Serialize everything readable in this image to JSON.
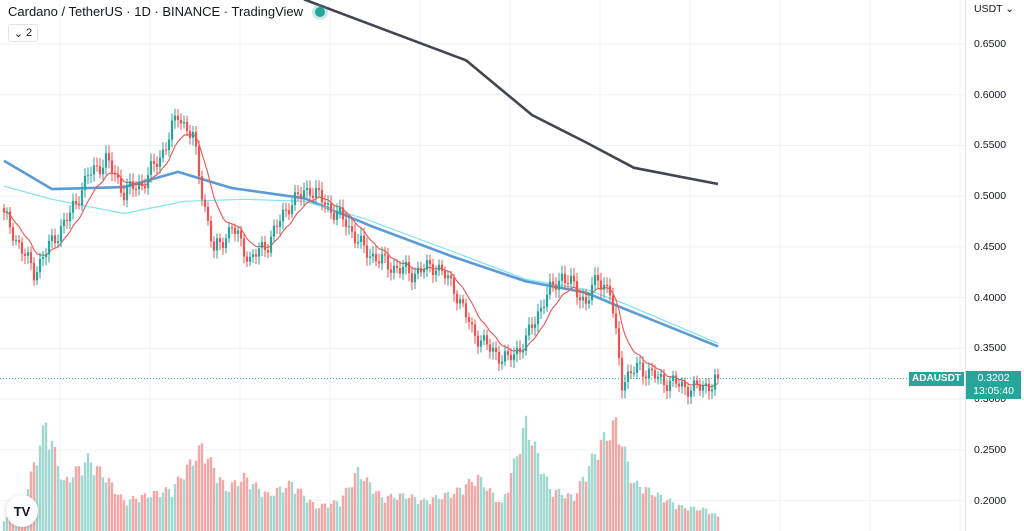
{
  "header": {
    "title": "Cardano / TetherUS · 1D · BINANCE · TradingView",
    "indicator_count": "2",
    "chevron_glyph": "⌄"
  },
  "price_axis": {
    "currency": "USDT ⌄",
    "ticks": [
      "0.6500",
      "0.6000",
      "0.5500",
      "0.5000",
      "0.4500",
      "0.4000",
      "0.3500",
      "0.3000",
      "0.2500",
      "0.2000"
    ]
  },
  "last_price": {
    "symbol": "ADAUSDT",
    "value": "0.3202",
    "countdown": "13:05:40"
  },
  "logo": {
    "text": "TV"
  },
  "colors": {
    "up": "#26a69a",
    "down": "#ef5350",
    "vol_up": "#9fd8d1",
    "vol_down": "#f5a7a6",
    "ma_fast": "#ef5350",
    "ma_mid": "#5b9bd5",
    "ma_cyan": "#7fe3f0",
    "ma_long": "#434651"
  },
  "chart_data": {
    "type": "candlestick",
    "title": "Cardano / TetherUS · 1D · BINANCE · TradingView",
    "ylim": [
      0.17,
      0.6934
    ],
    "y_ticks": [
      0.65,
      0.6,
      0.55,
      0.5,
      0.45,
      0.4,
      0.35,
      0.3,
      0.25,
      0.2
    ],
    "last_price": 0.3202,
    "close_anchors": [
      [
        0,
        0.481
      ],
      [
        4,
        0.458
      ],
      [
        10,
        0.425
      ],
      [
        16,
        0.455
      ],
      [
        22,
        0.482
      ],
      [
        28,
        0.52
      ],
      [
        34,
        0.536
      ],
      [
        40,
        0.504
      ],
      [
        46,
        0.512
      ],
      [
        52,
        0.538
      ],
      [
        58,
        0.58
      ],
      [
        63,
        0.558
      ],
      [
        66,
        0.504
      ],
      [
        70,
        0.445
      ],
      [
        76,
        0.47
      ],
      [
        82,
        0.437
      ],
      [
        88,
        0.454
      ],
      [
        95,
        0.492
      ],
      [
        102,
        0.508
      ],
      [
        108,
        0.49
      ],
      [
        114,
        0.474
      ],
      [
        120,
        0.447
      ],
      [
        128,
        0.432
      ],
      [
        136,
        0.424
      ],
      [
        144,
        0.432
      ],
      [
        150,
        0.41
      ],
      [
        156,
        0.368
      ],
      [
        162,
        0.349
      ],
      [
        168,
        0.338
      ],
      [
        174,
        0.358
      ],
      [
        180,
        0.398
      ],
      [
        186,
        0.422
      ],
      [
        190,
        0.41
      ],
      [
        194,
        0.395
      ],
      [
        198,
        0.42
      ],
      [
        202,
        0.405
      ],
      [
        206,
        0.318
      ],
      [
        212,
        0.332
      ],
      [
        218,
        0.32
      ],
      [
        224,
        0.315
      ],
      [
        230,
        0.31
      ],
      [
        236,
        0.315
      ],
      [
        238,
        0.3202
      ]
    ],
    "volume_anchors": [
      [
        0,
        0.1
      ],
      [
        6,
        0.2
      ],
      [
        14,
        0.9
      ],
      [
        20,
        0.4
      ],
      [
        28,
        0.6
      ],
      [
        34,
        0.45
      ],
      [
        40,
        0.25
      ],
      [
        48,
        0.3
      ],
      [
        56,
        0.35
      ],
      [
        66,
        0.7
      ],
      [
        74,
        0.35
      ],
      [
        80,
        0.45
      ],
      [
        88,
        0.3
      ],
      [
        96,
        0.4
      ],
      [
        104,
        0.2
      ],
      [
        112,
        0.25
      ],
      [
        118,
        0.5
      ],
      [
        126,
        0.28
      ],
      [
        134,
        0.3
      ],
      [
        140,
        0.25
      ],
      [
        150,
        0.32
      ],
      [
        158,
        0.45
      ],
      [
        166,
        0.22
      ],
      [
        174,
        0.9
      ],
      [
        182,
        0.35
      ],
      [
        190,
        0.28
      ],
      [
        198,
        0.7
      ],
      [
        204,
        0.9
      ],
      [
        210,
        0.4
      ],
      [
        218,
        0.3
      ],
      [
        226,
        0.2
      ],
      [
        234,
        0.18
      ],
      [
        238,
        0.12
      ]
    ],
    "moving_averages": [
      {
        "name": "",
        "color": "#434651",
        "points": [
          [
            100,
            0.694
          ],
          [
            154,
            0.634
          ],
          [
            176,
            0.58
          ],
          [
            194,
            0.553
          ],
          [
            210,
            0.528
          ],
          [
            238,
            0.512
          ]
        ]
      },
      {
        "name": "",
        "color": "#5b9bd5",
        "points": [
          [
            0,
            0.535
          ],
          [
            16,
            0.507
          ],
          [
            40,
            0.509
          ],
          [
            58,
            0.524
          ],
          [
            76,
            0.508
          ],
          [
            100,
            0.498
          ],
          [
            122,
            0.471
          ],
          [
            150,
            0.44
          ],
          [
            174,
            0.416
          ],
          [
            194,
            0.405
          ],
          [
            206,
            0.39
          ],
          [
            238,
            0.352
          ]
        ]
      },
      {
        "name": "",
        "color": "#7fe3f0",
        "points": [
          [
            0,
            0.51
          ],
          [
            16,
            0.497
          ],
          [
            40,
            0.483
          ],
          [
            60,
            0.495
          ],
          [
            80,
            0.497
          ],
          [
            100,
            0.495
          ],
          [
            120,
            0.478
          ],
          [
            150,
            0.445
          ],
          [
            174,
            0.418
          ],
          [
            194,
            0.408
          ],
          [
            206,
            0.395
          ],
          [
            238,
            0.355
          ]
        ]
      }
    ]
  }
}
